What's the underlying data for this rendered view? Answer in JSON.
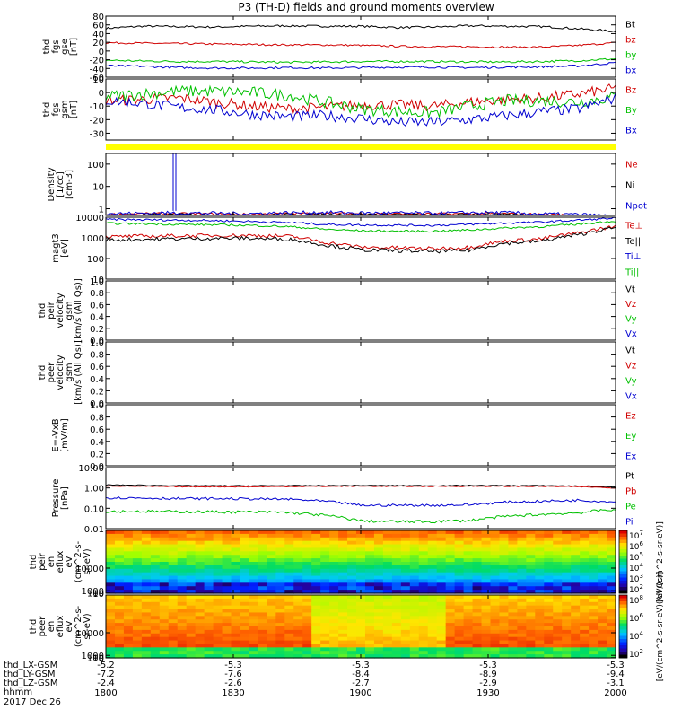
{
  "chart_data": {
    "type": "line",
    "title": "P3 (TH-D) fields and ground moments overview",
    "date_label": "2017 Dec 26",
    "time_axis": {
      "hhmm_label": "hhmm",
      "ticks": [
        "1800",
        "1830",
        "1900",
        "1930",
        "2000"
      ],
      "ephemeris": [
        {
          "label": "thd_LX-GSM",
          "values": [
            "-5.2",
            "-5.3",
            "-5.3",
            "-5.3",
            "-5.3"
          ]
        },
        {
          "label": "thd_LY-GSM",
          "values": [
            "-7.2",
            "-7.6",
            "-8.4",
            "-8.9",
            "-9.4"
          ]
        },
        {
          "label": "thd_LZ-GSM",
          "values": [
            "-2.4",
            "-2.6",
            "-2.7",
            "-2.9",
            "-3.1"
          ]
        }
      ]
    },
    "panels": [
      {
        "id": "fgs-gse",
        "ylabel": [
          "thd",
          "fgs",
          "gse",
          "[nT]"
        ],
        "ticks": [
          "80",
          "60",
          "40",
          "20",
          "0",
          "-20",
          "-40",
          "-60"
        ],
        "ylim": [
          -60,
          80
        ],
        "legend": [
          {
            "name": "Bt",
            "color": "#000000"
          },
          {
            "name": "bz",
            "color": "#d00000"
          },
          {
            "name": "by",
            "color": "#00c000"
          },
          {
            "name": "bx",
            "color": "#0000d0"
          }
        ],
        "series": [
          {
            "name": "Bt",
            "color": "#000000",
            "base": [
              52,
              57,
              56,
              55,
              57,
              58,
              57,
              57,
              54,
              55,
              58,
              57,
              56,
              51,
              45
            ],
            "noise": 0.8
          },
          {
            "name": "bz",
            "color": "#d00000",
            "base": [
              19,
              18,
              17,
              16,
              15,
              14,
              14,
              13,
              11,
              10,
              10,
              9,
              9,
              13,
              19
            ],
            "noise": 0.7
          },
          {
            "name": "by",
            "color": "#00c000",
            "base": [
              -21,
              -23,
              -24,
              -24,
              -25,
              -26,
              -25,
              -24,
              -24,
              -24,
              -25,
              -25,
              -24,
              -22,
              -18
            ],
            "noise": 0.8
          },
          {
            "name": "bx",
            "color": "#0000d0",
            "base": [
              -34,
              -35,
              -38,
              -39,
              -39,
              -38,
              -39,
              -38,
              -37,
              -37,
              -38,
              -37,
              -36,
              -34,
              -27
            ],
            "noise": 0.8
          }
        ]
      },
      {
        "id": "fgs-gsm",
        "ylabel": [
          "thd",
          "fgs",
          "gsm",
          "[nT]"
        ],
        "ticks": [
          "10",
          "0",
          "-10",
          "-20",
          "-30"
        ],
        "ylim": [
          -35,
          10
        ],
        "legend": [
          {
            "name": "Bz",
            "color": "#d00000"
          },
          {
            "name": "By",
            "color": "#00c000"
          },
          {
            "name": "Bx",
            "color": "#0000d0"
          }
        ],
        "series": [
          {
            "name": "Bz",
            "color": "#d00000",
            "base": [
              -6,
              -5,
              -4,
              -7,
              -10,
              -12,
              -11,
              -9,
              -9,
              -10,
              -7,
              -5,
              -4,
              -1,
              3
            ],
            "noise": 1.3
          },
          {
            "name": "By",
            "color": "#00c000",
            "base": [
              -3,
              -1,
              1,
              1,
              0,
              -2,
              -7,
              -12,
              -14,
              -15,
              -10,
              -6,
              -6,
              -7,
              -3
            ],
            "noise": 1.5
          },
          {
            "name": "Bx",
            "color": "#0000d0",
            "base": [
              -6,
              -8,
              -11,
              -13,
              -16,
              -18,
              -17,
              -19,
              -22,
              -22,
              -20,
              -17,
              -14,
              -12,
              -4
            ],
            "noise": 1.3
          }
        ]
      },
      {
        "id": "density",
        "ylabel": [
          "Density",
          "[1/cc]",
          "[cm-3]"
        ],
        "log": true,
        "ticks": [
          "100",
          "10",
          "1"
        ],
        "ylim": [
          0.5,
          300
        ],
        "legend": [
          {
            "name": "Ne",
            "color": "#d00000"
          },
          {
            "name": "Ni",
            "color": "#000000"
          },
          {
            "name": "Npot",
            "color": "#0000d0"
          }
        ],
        "series": [
          {
            "name": "Ne",
            "color": "#d00000",
            "base": [
              0.55,
              0.6,
              0.6,
              0.58,
              0.56,
              0.6,
              0.62,
              0.6,
              0.6,
              0.58,
              0.6,
              0.6,
              0.55,
              0.5,
              0.4
            ],
            "noise": 0.05
          },
          {
            "name": "Ni",
            "color": "#000000",
            "base": [
              0.5,
              0.53,
              0.55,
              0.52,
              0.5,
              0.55,
              0.56,
              0.55,
              0.55,
              0.52,
              0.55,
              0.54,
              0.5,
              0.45,
              0.36
            ],
            "noise": 0.05
          },
          {
            "name": "Npot",
            "color": "#0000d0",
            "base": [
              0.6,
              0.62,
              0.65,
              0.62,
              0.6,
              0.66,
              0.68,
              0.64,
              0.64,
              0.62,
              0.66,
              0.66,
              0.58,
              0.55,
              0.45
            ],
            "noise": 0.08
          }
        ]
      },
      {
        "id": "temperature",
        "ylabel": [
          "magt3",
          "[eV]"
        ],
        "log": true,
        "ticks": [
          "10000",
          "1000",
          "100",
          "10"
        ],
        "ylim": [
          10,
          10000
        ],
        "legend": [
          {
            "name": "Te⊥",
            "color": "#d00000"
          },
          {
            "name": "Te||",
            "color": "#000000"
          },
          {
            "name": "Ti⊥",
            "color": "#0000d0"
          },
          {
            "name": "Ti||",
            "color": "#00c000"
          }
        ],
        "series": [
          {
            "name": "Ti⊥",
            "color": "#0000d0",
            "base": [
              7800,
              7500,
              7200,
              6800,
              6200,
              5500,
              4500,
              4200,
              4100,
              4000,
              4500,
              5200,
              5800,
              7200,
              9000
            ],
            "noise": 0.05
          },
          {
            "name": "Ti||",
            "color": "#00c000",
            "base": [
              5000,
              4800,
              4500,
              4300,
              4000,
              3500,
              2600,
              2200,
              2100,
              2100,
              2400,
              3000,
              3500,
              4600,
              6500
            ],
            "noise": 0.05
          },
          {
            "name": "Te⊥",
            "color": "#d00000",
            "base": [
              1100,
              1200,
              1250,
              1300,
              1300,
              1200,
              600,
              350,
              330,
              300,
              350,
              700,
              900,
              1700,
              3500
            ],
            "noise": 0.09
          },
          {
            "name": "Te||",
            "color": "#000000",
            "base": [
              780,
              850,
              900,
              950,
              950,
              850,
              450,
              260,
              240,
              220,
              250,
              550,
              700,
              1400,
              3000
            ],
            "noise": 0.09
          }
        ]
      },
      {
        "id": "peir-velocity",
        "ylabel": [
          "thd",
          "peir",
          "velocity",
          "gsm",
          "[km/s (All Qs)]"
        ],
        "ticks": [
          "1.0",
          "0.8",
          "0.6",
          "0.4",
          "0.2",
          "0.0"
        ],
        "ylim": [
          0,
          1
        ],
        "legend": [
          {
            "name": "Vt",
            "color": "#000000"
          },
          {
            "name": "Vz",
            "color": "#d00000"
          },
          {
            "name": "Vy",
            "color": "#00c000"
          },
          {
            "name": "Vx",
            "color": "#0000d0"
          }
        ],
        "series": []
      },
      {
        "id": "peer-velocity",
        "ylabel": [
          "thd",
          "peer",
          "velocity",
          "gsm",
          "[km/s (All Qs)]"
        ],
        "ticks": [
          "1.0",
          "0.8",
          "0.6",
          "0.4",
          "0.2",
          "0.0"
        ],
        "ylim": [
          0,
          1
        ],
        "legend": [
          {
            "name": "Vt",
            "color": "#000000"
          },
          {
            "name": "Vz",
            "color": "#d00000"
          },
          {
            "name": "Vy",
            "color": "#00c000"
          },
          {
            "name": "Vx",
            "color": "#0000d0"
          }
        ],
        "series": []
      },
      {
        "id": "e-field",
        "ylabel": [
          "E=-VxB",
          "[mV/m]"
        ],
        "ticks": [
          "1.0",
          "0.8",
          "0.6",
          "0.4",
          "0.2",
          "0.0"
        ],
        "ylim": [
          0,
          1
        ],
        "legend": [
          {
            "name": "Ez",
            "color": "#d00000"
          },
          {
            "name": "Ey",
            "color": "#00c000"
          },
          {
            "name": "Ex",
            "color": "#0000d0"
          }
        ],
        "series": []
      },
      {
        "id": "pressure",
        "ylabel": [
          "Pressure",
          "[nPa]"
        ],
        "log": true,
        "ticks": [
          "10.00",
          "1.00",
          "0.10",
          "0.01"
        ],
        "ylim": [
          0.01,
          10
        ],
        "legend": [
          {
            "name": "Pt",
            "color": "#000000"
          },
          {
            "name": "Pb",
            "color": "#d00000"
          },
          {
            "name": "Pe",
            "color": "#00c000"
          },
          {
            "name": "Pi",
            "color": "#0000d0"
          }
        ],
        "series": [
          {
            "name": "Pt",
            "color": "#000000",
            "base": [
              1.4,
              1.35,
              1.3,
              1.28,
              1.28,
              1.3,
              1.3,
              1.32,
              1.3,
              1.3,
              1.32,
              1.3,
              1.3,
              1.25,
              1.1
            ],
            "noise": 0.02
          },
          {
            "name": "Pb",
            "color": "#d00000",
            "base": [
              1.25,
              1.2,
              1.15,
              1.15,
              1.15,
              1.18,
              1.2,
              1.22,
              1.2,
              1.2,
              1.22,
              1.2,
              1.2,
              1.15,
              1.0
            ],
            "noise": 0.02
          },
          {
            "name": "Pi",
            "color": "#0000d0",
            "base": [
              0.33,
              0.32,
              0.3,
              0.3,
              0.29,
              0.28,
              0.22,
              0.14,
              0.14,
              0.14,
              0.15,
              0.2,
              0.22,
              0.25,
              0.2
            ],
            "noise": 0.06
          },
          {
            "name": "Pe",
            "color": "#00c000",
            "base": [
              0.07,
              0.07,
              0.068,
              0.066,
              0.065,
              0.062,
              0.045,
              0.024,
              0.022,
              0.022,
              0.025,
              0.04,
              0.05,
              0.06,
              0.09
            ],
            "noise": 0.07
          }
        ]
      },
      {
        "id": "peir-eflux",
        "ylabel": [
          "thd",
          "peir",
          "en",
          "eflux",
          "eV",
          "(cm^2-s-",
          "sr-eV)"
        ],
        "type": "spectrogram",
        "ticks": [
          "10000",
          "1000",
          "100",
          "10"
        ],
        "ylim": [
          5,
          25000
        ],
        "colorbar": {
          "ticks": [
            "10^7",
            "10^6",
            "10^5",
            "10^4",
            "10^3",
            "10^2"
          ],
          "label": "[eV/(cm^2-s-sr-eV)]"
        }
      },
      {
        "id": "peer-eflux",
        "ylabel": [
          "thd",
          "peer",
          "en",
          "eflux",
          "eV",
          "(cm^2-s-",
          "sr-eV)"
        ],
        "type": "spectrogram",
        "ticks": [
          "10000",
          "1000",
          "100",
          "10"
        ],
        "ylim": [
          5,
          25000
        ],
        "colorbar": {
          "ticks": [
            "10^8",
            "10^6",
            "10^4",
            "10^2"
          ],
          "label": "[eV/(cm^2-s-sr-eV)(All Qs)]"
        }
      }
    ]
  }
}
